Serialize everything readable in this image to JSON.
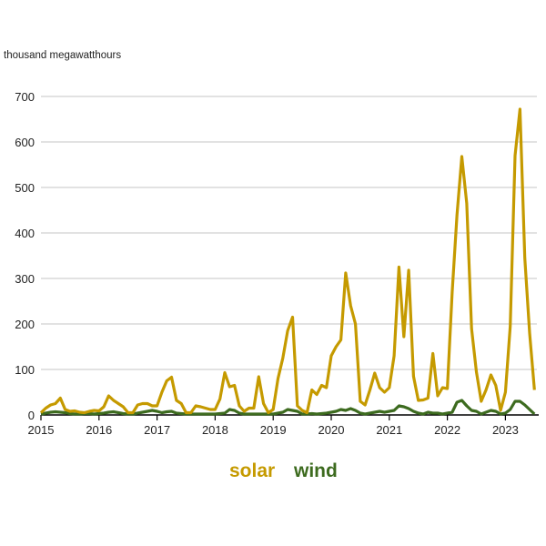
{
  "chart_data": {
    "type": "line",
    "title": "",
    "ylabel": "thousand megawatthours",
    "xlabel": "",
    "ylim": [
      0,
      700
    ],
    "yticks": [
      "0",
      "100",
      "200",
      "300",
      "400",
      "500",
      "600",
      "700"
    ],
    "xticks": [
      "2015",
      "2016",
      "2017",
      "2018",
      "2019",
      "2020",
      "2021",
      "2022",
      "2023"
    ],
    "x_start": "2015-01",
    "frequency": "monthly",
    "grid": true,
    "legend_placement": "bottom-center",
    "series": [
      {
        "name": "solar",
        "color": "#c59a00",
        "values": [
          5,
          15,
          22,
          25,
          37,
          12,
          8,
          9,
          6,
          5,
          8,
          10,
          9,
          18,
          42,
          32,
          25,
          18,
          5,
          5,
          22,
          25,
          25,
          20,
          20,
          50,
          75,
          83,
          32,
          25,
          5,
          5,
          20,
          18,
          15,
          12,
          12,
          35,
          93,
          62,
          65,
          20,
          8,
          15,
          15,
          84,
          25,
          5,
          12,
          80,
          125,
          185,
          215,
          20,
          10,
          5,
          55,
          45,
          65,
          60,
          130,
          150,
          165,
          312,
          240,
          200,
          30,
          22,
          55,
          92,
          60,
          50,
          60,
          130,
          325,
          172,
          318,
          85,
          32,
          33,
          37,
          135,
          42,
          60,
          58,
          270,
          440,
          568,
          465,
          190,
          95,
          30,
          55,
          88,
          65,
          10,
          50,
          195,
          570,
          672,
          345,
          180,
          55
        ]
      },
      {
        "name": "wind",
        "color": "#3d6b1f",
        "values": [
          2,
          4,
          6,
          7,
          6,
          5,
          3,
          2,
          2,
          3,
          3,
          2,
          3,
          4,
          6,
          7,
          5,
          3,
          2,
          2,
          4,
          6,
          8,
          10,
          8,
          5,
          7,
          8,
          4,
          3,
          2,
          2,
          2,
          2,
          2,
          2,
          2,
          3,
          4,
          12,
          10,
          4,
          2,
          2,
          2,
          2,
          2,
          2,
          2,
          4,
          6,
          12,
          10,
          8,
          2,
          2,
          3,
          2,
          3,
          4,
          6,
          8,
          12,
          10,
          14,
          10,
          4,
          2,
          4,
          6,
          8,
          6,
          8,
          10,
          20,
          18,
          14,
          8,
          4,
          2,
          6,
          4,
          4,
          2,
          4,
          6,
          28,
          32,
          20,
          10,
          8,
          2,
          6,
          10,
          8,
          2,
          4,
          12,
          30,
          30,
          22,
          12,
          2
        ]
      }
    ]
  }
}
